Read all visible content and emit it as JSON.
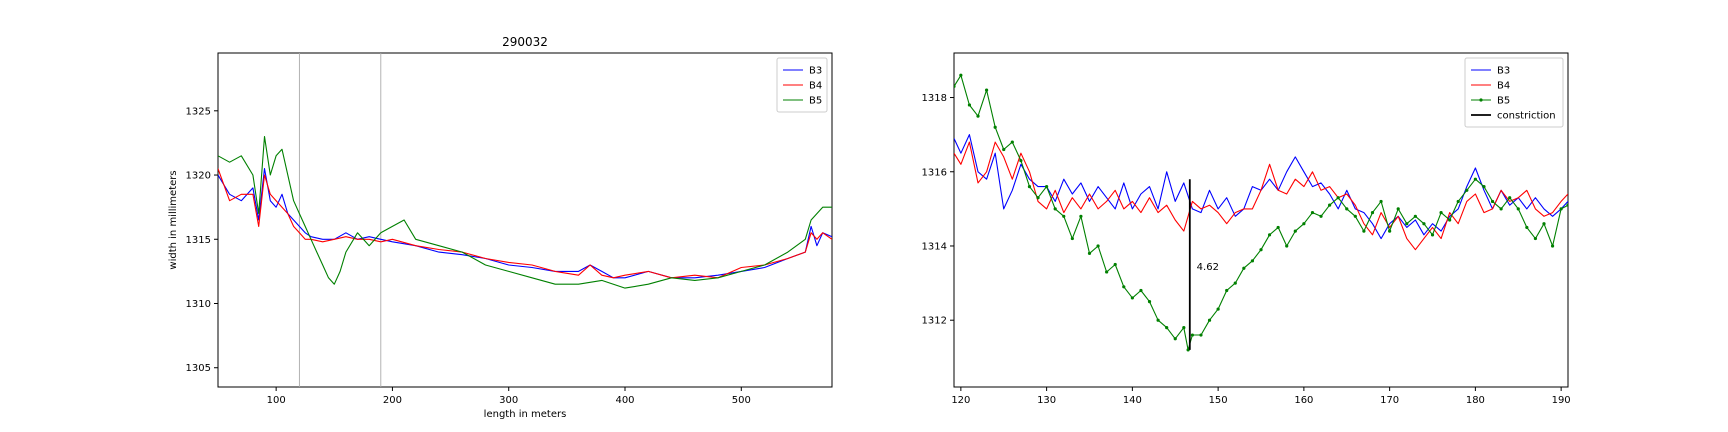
{
  "chart_data": [
    {
      "type": "line",
      "title": "290032",
      "xlabel": "length in meters",
      "ylabel": "width in millimeters",
      "xlim": [
        50,
        578
      ],
      "ylim": [
        1303.5,
        1329.5
      ],
      "xticks": [
        100,
        200,
        300,
        400,
        500
      ],
      "yticks": [
        1305,
        1310,
        1315,
        1320,
        1325
      ],
      "grid": false,
      "legend_position": "upper right",
      "vlines": [
        120,
        190
      ],
      "vline_color": "#aaaaaa",
      "series": [
        {
          "name": "B3",
          "color": "#0000ff",
          "x": [
            50,
            60,
            70,
            80,
            85,
            90,
            95,
            100,
            105,
            110,
            115,
            120,
            125,
            130,
            140,
            150,
            160,
            170,
            180,
            190,
            200,
            220,
            240,
            260,
            280,
            300,
            320,
            340,
            360,
            370,
            380,
            390,
            400,
            420,
            440,
            460,
            480,
            500,
            520,
            540,
            555,
            560,
            565,
            570,
            578
          ],
          "y": [
            1320.0,
            1318.5,
            1318.0,
            1319.0,
            1316.5,
            1320.5,
            1318.0,
            1317.5,
            1318.5,
            1317.0,
            1316.5,
            1316.0,
            1315.5,
            1315.2,
            1315.0,
            1315.0,
            1315.5,
            1315.0,
            1315.2,
            1315.0,
            1314.8,
            1314.5,
            1314.0,
            1313.8,
            1313.5,
            1313.0,
            1312.8,
            1312.5,
            1312.5,
            1313.0,
            1312.5,
            1312.0,
            1312.0,
            1312.5,
            1312.0,
            1312.0,
            1312.2,
            1312.5,
            1312.8,
            1313.5,
            1314.0,
            1316.0,
            1314.5,
            1315.5,
            1315.2
          ]
        },
        {
          "name": "B4",
          "color": "#ff0000",
          "x": [
            50,
            60,
            70,
            80,
            85,
            90,
            95,
            100,
            105,
            110,
            115,
            120,
            125,
            130,
            140,
            150,
            160,
            170,
            180,
            190,
            200,
            220,
            240,
            260,
            280,
            300,
            320,
            340,
            360,
            370,
            380,
            390,
            400,
            420,
            440,
            460,
            480,
            500,
            520,
            540,
            555,
            560,
            565,
            570,
            578
          ],
          "y": [
            1320.5,
            1318.0,
            1318.5,
            1318.5,
            1316.0,
            1320.0,
            1318.5,
            1318.0,
            1317.5,
            1317.0,
            1316.0,
            1315.5,
            1315.0,
            1315.0,
            1314.8,
            1315.0,
            1315.2,
            1315.0,
            1315.0,
            1314.8,
            1315.0,
            1314.5,
            1314.2,
            1314.0,
            1313.5,
            1313.2,
            1313.0,
            1312.5,
            1312.2,
            1313.0,
            1312.2,
            1312.0,
            1312.2,
            1312.5,
            1312.0,
            1312.2,
            1312.0,
            1312.8,
            1313.0,
            1313.5,
            1314.0,
            1315.5,
            1315.0,
            1315.5,
            1315.0
          ]
        },
        {
          "name": "B5",
          "color": "#008000",
          "x": [
            50,
            60,
            70,
            80,
            85,
            90,
            95,
            100,
            105,
            110,
            115,
            120,
            125,
            130,
            135,
            140,
            145,
            150,
            155,
            160,
            170,
            180,
            190,
            200,
            210,
            220,
            240,
            260,
            280,
            300,
            320,
            340,
            360,
            380,
            400,
            420,
            440,
            460,
            480,
            500,
            520,
            540,
            555,
            560,
            565,
            570,
            578
          ],
          "y": [
            1321.5,
            1321.0,
            1321.5,
            1320.0,
            1317.0,
            1323.0,
            1320.0,
            1321.5,
            1322.0,
            1320.0,
            1318.0,
            1317.0,
            1316.0,
            1315.0,
            1314.0,
            1313.0,
            1312.0,
            1311.5,
            1312.5,
            1314.0,
            1315.5,
            1314.5,
            1315.5,
            1316.0,
            1316.5,
            1315.0,
            1314.5,
            1314.0,
            1313.0,
            1312.5,
            1312.0,
            1311.5,
            1311.5,
            1311.8,
            1311.2,
            1311.5,
            1312.0,
            1311.8,
            1312.0,
            1312.5,
            1313.0,
            1314.0,
            1315.0,
            1316.5,
            1317.0,
            1317.5,
            1317.5
          ]
        }
      ]
    },
    {
      "type": "line",
      "title": "",
      "xlabel": "",
      "ylabel": "",
      "xlim": [
        119.2,
        190.8
      ],
      "ylim": [
        1310.2,
        1319.2
      ],
      "xticks": [
        120,
        130,
        140,
        150,
        160,
        170,
        180,
        190
      ],
      "yticks": [
        1312,
        1314,
        1316,
        1318
      ],
      "grid": false,
      "legend_position": "upper right",
      "annotation": {
        "text": "4.62",
        "x": 147.5,
        "y": 1313.45
      },
      "series": [
        {
          "name": "B3",
          "color": "#0000ff",
          "x": [
            119.2,
            120,
            121,
            122,
            123,
            124,
            125,
            126,
            127,
            128,
            129,
            130,
            131,
            132,
            133,
            134,
            135,
            136,
            137,
            138,
            139,
            140,
            141,
            142,
            143,
            144,
            145,
            146,
            147,
            148,
            149,
            150,
            151,
            152,
            153,
            154,
            155,
            156,
            157,
            158,
            159,
            160,
            161,
            162,
            163,
            164,
            165,
            166,
            167,
            168,
            169,
            170,
            171,
            172,
            173,
            174,
            175,
            176,
            177,
            178,
            179,
            180,
            181,
            182,
            183,
            184,
            185,
            186,
            187,
            188,
            189,
            190,
            190.8
          ],
          "y": [
            1316.9,
            1316.5,
            1317.0,
            1316.0,
            1315.8,
            1316.5,
            1315.0,
            1315.5,
            1316.2,
            1315.8,
            1315.6,
            1315.6,
            1315.2,
            1315.8,
            1315.4,
            1315.7,
            1315.2,
            1315.6,
            1315.3,
            1315.0,
            1315.7,
            1315.0,
            1315.4,
            1315.6,
            1315.0,
            1316.0,
            1315.2,
            1315.7,
            1315.0,
            1314.9,
            1315.5,
            1315.0,
            1315.3,
            1314.8,
            1315.0,
            1315.6,
            1315.5,
            1315.8,
            1315.5,
            1316.0,
            1316.4,
            1316.0,
            1315.6,
            1315.7,
            1315.4,
            1315.0,
            1315.5,
            1315.0,
            1314.9,
            1314.6,
            1314.2,
            1314.6,
            1314.8,
            1314.5,
            1314.7,
            1314.3,
            1314.6,
            1314.4,
            1314.8,
            1315.0,
            1315.6,
            1316.1,
            1315.5,
            1315.0,
            1315.5,
            1315.1,
            1315.3,
            1315.0,
            1315.3,
            1315.0,
            1314.8,
            1315.0,
            1315.2
          ]
        },
        {
          "name": "B4",
          "color": "#ff0000",
          "x": [
            119.2,
            120,
            121,
            122,
            123,
            124,
            125,
            126,
            127,
            128,
            129,
            130,
            131,
            132,
            133,
            134,
            135,
            136,
            137,
            138,
            139,
            140,
            141,
            142,
            143,
            144,
            145,
            146,
            147,
            148,
            149,
            150,
            151,
            152,
            153,
            154,
            155,
            156,
            157,
            158,
            159,
            160,
            161,
            162,
            163,
            164,
            165,
            166,
            167,
            168,
            169,
            170,
            171,
            172,
            173,
            174,
            175,
            176,
            177,
            178,
            179,
            180,
            181,
            182,
            183,
            184,
            185,
            186,
            187,
            188,
            189,
            190,
            190.8
          ],
          "y": [
            1316.5,
            1316.2,
            1316.8,
            1315.7,
            1316.0,
            1316.8,
            1316.4,
            1315.8,
            1316.5,
            1316.0,
            1315.2,
            1315.0,
            1315.5,
            1314.9,
            1315.3,
            1315.0,
            1315.4,
            1315.0,
            1315.2,
            1315.5,
            1315.0,
            1315.2,
            1314.9,
            1315.3,
            1314.9,
            1315.1,
            1314.7,
            1314.4,
            1315.2,
            1315.0,
            1315.1,
            1314.9,
            1314.6,
            1314.9,
            1315.0,
            1315.0,
            1315.5,
            1316.2,
            1315.5,
            1315.4,
            1315.8,
            1315.6,
            1316.0,
            1315.5,
            1315.6,
            1315.3,
            1315.4,
            1315.1,
            1314.6,
            1314.3,
            1314.9,
            1314.5,
            1314.8,
            1314.2,
            1313.9,
            1314.2,
            1314.5,
            1314.2,
            1314.9,
            1314.6,
            1315.2,
            1315.4,
            1314.9,
            1315.0,
            1315.5,
            1315.2,
            1315.3,
            1315.5,
            1315.0,
            1314.8,
            1314.9,
            1315.2,
            1315.4
          ]
        },
        {
          "name": "B5",
          "color": "#008000",
          "x": [
            119.2,
            120,
            121,
            122,
            123,
            124,
            125,
            126,
            127,
            128,
            129,
            130,
            131,
            132,
            133,
            134,
            135,
            136,
            137,
            138,
            139,
            140,
            141,
            142,
            143,
            144,
            145,
            146,
            146.5,
            147,
            148,
            149,
            150,
            151,
            152,
            153,
            154,
            155,
            156,
            157,
            158,
            159,
            160,
            161,
            162,
            163,
            164,
            165,
            166,
            167,
            168,
            169,
            170,
            171,
            172,
            173,
            174,
            175,
            176,
            177,
            178,
            179,
            180,
            181,
            182,
            183,
            184,
            185,
            186,
            187,
            188,
            189,
            190,
            190.8
          ],
          "y": [
            1318.3,
            1318.6,
            1317.8,
            1317.5,
            1318.2,
            1317.2,
            1316.6,
            1316.8,
            1316.3,
            1315.6,
            1315.3,
            1315.6,
            1315.0,
            1314.8,
            1314.2,
            1314.8,
            1313.8,
            1314.0,
            1313.3,
            1313.5,
            1312.9,
            1312.6,
            1312.8,
            1312.5,
            1312.0,
            1311.8,
            1311.5,
            1311.8,
            1311.2,
            1311.6,
            1311.6,
            1312.0,
            1312.3,
            1312.8,
            1313.0,
            1313.4,
            1313.6,
            1313.9,
            1314.3,
            1314.5,
            1314.0,
            1314.4,
            1314.6,
            1314.9,
            1314.8,
            1315.1,
            1315.3,
            1315.0,
            1314.8,
            1314.4,
            1314.9,
            1315.2,
            1314.4,
            1315.0,
            1314.6,
            1314.8,
            1314.6,
            1314.3,
            1314.9,
            1314.7,
            1315.2,
            1315.5,
            1315.8,
            1315.6,
            1315.2,
            1315.0,
            1315.3,
            1315.0,
            1314.5,
            1314.2,
            1314.6,
            1314.0,
            1315.0,
            1315.1
          ]
        },
        {
          "name": "constriction",
          "color": "#000000",
          "x": [
            146.7,
            146.7
          ],
          "y": [
            1311.2,
            1315.8
          ]
        }
      ]
    }
  ]
}
